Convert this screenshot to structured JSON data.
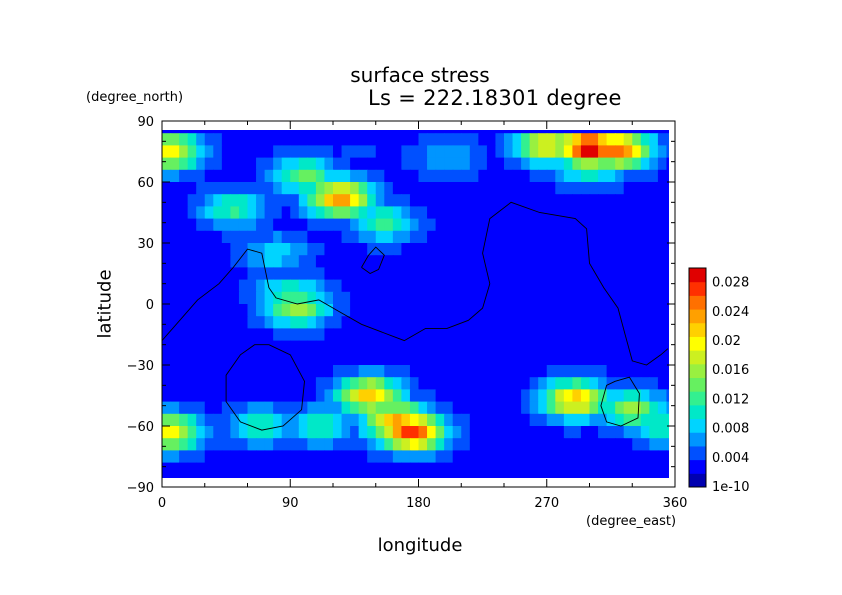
{
  "chart_data": {
    "type": "heatmap",
    "title": "surface stress",
    "subtitle": "Ls = 222.18301 degree",
    "xlabel": "longitude",
    "ylabel": "latitude",
    "x_unit": "(degree_east)",
    "y_unit": "(degree_north)",
    "xlim": [
      0,
      360
    ],
    "ylim": [
      -90,
      90
    ],
    "x_ticks": [
      0,
      90,
      180,
      270,
      360
    ],
    "y_ticks": [
      90,
      60,
      30,
      0,
      -30,
      -60,
      -90
    ],
    "colorbar": {
      "min": 0,
      "max": 0.03,
      "tick_labels": [
        "0.028",
        "0.024",
        "0.02",
        "0.016",
        "0.012",
        "0.008",
        "0.004",
        "1e-10"
      ],
      "tick_values": [
        0.028,
        0.024,
        0.02,
        0.016,
        0.012,
        0.008,
        0.004,
        0
      ],
      "colors": [
        "#0000b0",
        "#0000ff",
        "#0050ff",
        "#0095ff",
        "#00d4ff",
        "#00e8c8",
        "#33f090",
        "#66f060",
        "#99f040",
        "#ccf020",
        "#ffff00",
        "#ffd000",
        "#ffa000",
        "#ff7000",
        "#ff3000",
        "#e00000"
      ]
    },
    "field_features": [
      {
        "lon": 140,
        "lat": 74,
        "value": 0.004
      },
      {
        "lon": 300,
        "lat": 77,
        "value": 0.03
      },
      {
        "lon": 320,
        "lat": 76,
        "value": 0.026
      },
      {
        "lon": 270,
        "lat": 78,
        "value": 0.02
      },
      {
        "lon": 300,
        "lat": 67,
        "value": 0.012
      },
      {
        "lon": 200,
        "lat": 72,
        "value": 0.008
      },
      {
        "lon": 5,
        "lat": 75,
        "value": 0.02
      },
      {
        "lon": 125,
        "lat": 52,
        "value": 0.024
      },
      {
        "lon": 100,
        "lat": 63,
        "value": 0.014
      },
      {
        "lon": 155,
        "lat": 40,
        "value": 0.012
      },
      {
        "lon": 50,
        "lat": 47,
        "value": 0.012
      },
      {
        "lon": 90,
        "lat": 5,
        "value": 0.012
      },
      {
        "lon": 80,
        "lat": 25,
        "value": 0.009
      },
      {
        "lon": 95,
        "lat": -2,
        "value": 0.016
      },
      {
        "lon": 145,
        "lat": -45,
        "value": 0.022
      },
      {
        "lon": 165,
        "lat": -58,
        "value": 0.024
      },
      {
        "lon": 175,
        "lat": -63,
        "value": 0.028
      },
      {
        "lon": 290,
        "lat": -47,
        "value": 0.022
      },
      {
        "lon": 330,
        "lat": -52,
        "value": 0.016
      },
      {
        "lon": 355,
        "lat": -60,
        "value": 0.012
      },
      {
        "lon": 5,
        "lat": -63,
        "value": 0.02
      },
      {
        "lon": 70,
        "lat": -60,
        "value": 0.012
      },
      {
        "lon": 110,
        "lat": -60,
        "value": 0.012
      },
      {
        "lon": 180,
        "lat": 0,
        "value": 0.001
      },
      {
        "lon": 240,
        "lat": 10,
        "value": 0.001
      }
    ],
    "contour_lines": [
      [
        [
          0,
          -18
        ],
        [
          10,
          -10
        ],
        [
          25,
          2
        ],
        [
          40,
          10
        ],
        [
          50,
          18
        ],
        [
          60,
          27
        ],
        [
          70,
          25
        ],
        [
          75,
          8
        ],
        [
          80,
          3
        ],
        [
          95,
          0
        ],
        [
          110,
          2
        ],
        [
          125,
          -4
        ],
        [
          140,
          -10
        ],
        [
          155,
          -14
        ],
        [
          170,
          -18
        ],
        [
          185,
          -12
        ],
        [
          200,
          -12
        ],
        [
          215,
          -8
        ],
        [
          225,
          -2
        ],
        [
          230,
          10
        ],
        [
          225,
          25
        ],
        [
          230,
          42
        ],
        [
          245,
          50
        ],
        [
          265,
          45
        ],
        [
          290,
          42
        ],
        [
          298,
          37
        ],
        [
          300,
          20
        ],
        [
          310,
          8
        ],
        [
          320,
          -2
        ],
        [
          325,
          -15
        ],
        [
          330,
          -28
        ],
        [
          340,
          -30
        ],
        [
          350,
          -25
        ],
        [
          355,
          -22
        ]
      ],
      [
        [
          140,
          18
        ],
        [
          145,
          24
        ],
        [
          150,
          28
        ],
        [
          156,
          24
        ],
        [
          152,
          17
        ],
        [
          146,
          15
        ],
        [
          140,
          18
        ]
      ],
      [
        [
          75,
          -20
        ],
        [
          90,
          -25
        ],
        [
          100,
          -38
        ],
        [
          98,
          -52
        ],
        [
          85,
          -60
        ],
        [
          70,
          -62
        ],
        [
          55,
          -58
        ],
        [
          45,
          -48
        ],
        [
          45,
          -35
        ],
        [
          55,
          -25
        ],
        [
          65,
          -20
        ],
        [
          75,
          -20
        ]
      ],
      [
        [
          318,
          -38
        ],
        [
          328,
          -36
        ],
        [
          335,
          -44
        ],
        [
          334,
          -56
        ],
        [
          322,
          -60
        ],
        [
          312,
          -58
        ],
        [
          308,
          -50
        ],
        [
          312,
          -40
        ],
        [
          318,
          -38
        ]
      ]
    ]
  }
}
